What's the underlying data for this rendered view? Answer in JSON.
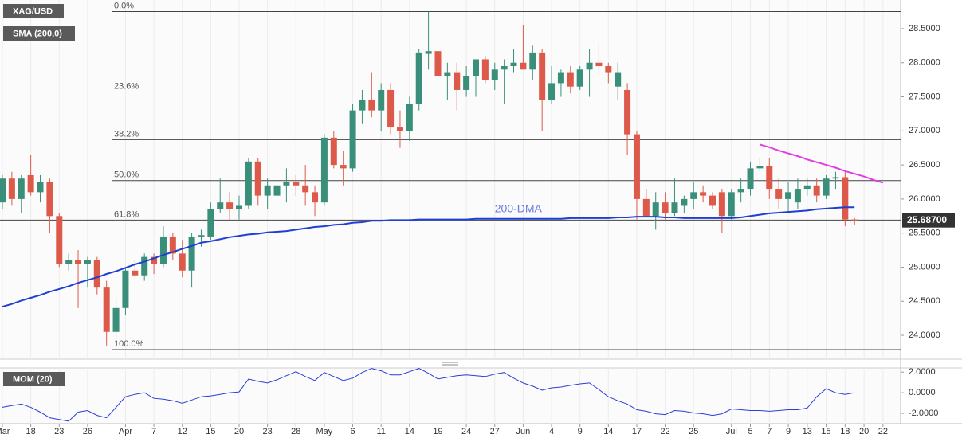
{
  "chart_data": {
    "type": "candlestick",
    "title": "XAG/USD",
    "up_color": "#3a8f7a",
    "down_color": "#dd5a4a",
    "xgrid": true,
    "categories": [
      "Mar",
      null,
      null,
      "18",
      null,
      null,
      "23",
      null,
      null,
      "26",
      null,
      null,
      null,
      "Apr",
      null,
      null,
      "7",
      null,
      null,
      "12",
      null,
      null,
      "15",
      null,
      null,
      "20",
      null,
      null,
      "23",
      null,
      null,
      "28",
      null,
      null,
      "May",
      null,
      null,
      "6",
      null,
      null,
      "11",
      null,
      null,
      "14",
      null,
      null,
      "19",
      null,
      null,
      "24",
      null,
      null,
      "27",
      null,
      null,
      "Jun",
      null,
      null,
      "4",
      null,
      null,
      "9",
      null,
      null,
      "14",
      null,
      null,
      "17",
      null,
      null,
      "22",
      null,
      null,
      "25",
      null,
      null,
      null,
      "Jul",
      null,
      "5",
      null,
      "7",
      null,
      "9",
      null,
      "13",
      null,
      "15",
      null,
      "18",
      null,
      "20",
      null,
      "22"
    ],
    "open": [
      25.95,
      26.3,
      26.0,
      26.35,
      26.1,
      26.25,
      25.75,
      25.05,
      25.1,
      25.05,
      25.1,
      24.7,
      24.05,
      24.4,
      24.95,
      24.88,
      25.15,
      25.05,
      25.45,
      25.2,
      24.95,
      25.45,
      25.45,
      25.85,
      25.95,
      25.85,
      25.9,
      26.55,
      26.05,
      26.05,
      26.2,
      26.25,
      26.2,
      26.1,
      25.95,
      26.9,
      26.5,
      26.45,
      27.3,
      27.45,
      27.3,
      27.6,
      27.05,
      27.0,
      27.4,
      28.13,
      28.17,
      27.8,
      27.85,
      27.6,
      27.8,
      28.05,
      27.75,
      27.9,
      27.95,
      28.0,
      27.9,
      28.15,
      27.45,
      27.7,
      27.85,
      27.65,
      27.9,
      28.0,
      27.95,
      27.65,
      27.6,
      26.95,
      26.0,
      25.75,
      25.95,
      25.8,
      25.9,
      26.0,
      26.1,
      26.05,
      26.1,
      25.75,
      26.1,
      26.15,
      26.45,
      26.48,
      26.15,
      26.0,
      25.95,
      26.15,
      26.2,
      26.05,
      26.3,
      26.32,
      25.7,
      null,
      null,
      null
    ],
    "high": [
      26.35,
      26.4,
      26.35,
      26.65,
      26.35,
      26.3,
      25.8,
      25.2,
      25.25,
      25.15,
      25.15,
      24.8,
      24.55,
      25.0,
      25.1,
      25.2,
      25.2,
      25.6,
      25.5,
      25.4,
      25.5,
      25.55,
      25.95,
      26.3,
      26.1,
      26.05,
      26.6,
      26.6,
      26.3,
      26.3,
      26.45,
      26.35,
      26.5,
      26.2,
      26.95,
      27.0,
      26.7,
      27.4,
      27.6,
      27.85,
      27.7,
      27.7,
      27.3,
      27.5,
      28.2,
      28.75,
      28.2,
      28.0,
      28.0,
      27.95,
      28.05,
      28.1,
      28.0,
      28.05,
      28.2,
      28.55,
      28.25,
      28.2,
      27.95,
      27.9,
      27.95,
      27.95,
      28.2,
      28.3,
      28.0,
      28.0,
      27.7,
      27.0,
      26.15,
      26.1,
      26.1,
      26.3,
      26.05,
      26.25,
      26.2,
      26.1,
      26.15,
      26.15,
      26.3,
      26.55,
      26.6,
      26.6,
      26.3,
      26.25,
      26.3,
      26.3,
      26.3,
      26.35,
      26.4,
      26.4,
      25.72,
      null,
      null,
      null
    ],
    "low": [
      25.85,
      25.9,
      25.8,
      26.05,
      25.95,
      25.5,
      25.0,
      24.95,
      24.4,
      24.7,
      24.6,
      23.85,
      23.95,
      24.3,
      24.85,
      24.8,
      24.9,
      25.0,
      25.1,
      24.85,
      24.7,
      25.3,
      25.4,
      25.8,
      25.7,
      25.7,
      25.85,
      25.9,
      25.85,
      26.0,
      25.95,
      26.05,
      25.9,
      25.75,
      25.9,
      26.45,
      26.2,
      26.4,
      27.1,
      27.2,
      27.0,
      26.95,
      26.75,
      26.85,
      27.3,
      27.9,
      27.4,
      27.45,
      27.3,
      27.5,
      27.5,
      27.7,
      27.6,
      27.4,
      27.85,
      27.9,
      27.75,
      27.0,
      27.4,
      27.5,
      27.55,
      27.6,
      27.5,
      27.8,
      27.7,
      27.45,
      26.65,
      25.7,
      25.75,
      25.55,
      25.7,
      25.75,
      25.8,
      25.85,
      25.95,
      25.85,
      25.5,
      25.7,
      25.95,
      26.05,
      26.4,
      26.0,
      25.85,
      25.8,
      25.85,
      26.05,
      25.95,
      26.0,
      26.15,
      25.6,
      25.62,
      null,
      null,
      null
    ],
    "close": [
      26.3,
      26.0,
      26.3,
      26.1,
      26.25,
      25.75,
      25.05,
      25.1,
      25.05,
      25.1,
      24.7,
      24.05,
      24.4,
      24.95,
      24.88,
      25.15,
      25.05,
      25.45,
      25.2,
      24.95,
      25.45,
      25.47,
      25.85,
      25.95,
      25.85,
      25.9,
      26.55,
      26.05,
      26.2,
      26.2,
      26.25,
      26.2,
      26.1,
      25.95,
      26.9,
      26.5,
      26.45,
      27.3,
      27.45,
      27.3,
      27.6,
      27.05,
      27.0,
      27.4,
      28.15,
      28.17,
      27.8,
      27.85,
      27.6,
      27.8,
      28.05,
      27.75,
      27.9,
      27.95,
      28.0,
      27.9,
      28.15,
      27.45,
      27.7,
      27.85,
      27.65,
      27.9,
      28.0,
      27.95,
      27.85,
      27.85,
      26.95,
      26.0,
      25.75,
      25.95,
      25.8,
      25.95,
      26.0,
      26.1,
      26.05,
      25.9,
      25.75,
      26.1,
      26.15,
      26.45,
      26.48,
      26.15,
      26.0,
      26.1,
      26.15,
      26.2,
      26.05,
      26.3,
      26.32,
      25.7,
      25.687,
      null,
      null,
      null
    ],
    "ylim": [
      23.65,
      28.92
    ],
    "yticks": [
      {
        "value": 24.0,
        "label": "24.0000"
      },
      {
        "value": 24.5,
        "label": "24.5000"
      },
      {
        "value": 25.0,
        "label": "25.0000"
      },
      {
        "value": 25.5,
        "label": "25.5000"
      },
      {
        "value": 26.0,
        "label": "26.0000"
      },
      {
        "value": 26.5,
        "label": "26.5000"
      },
      {
        "value": 27.0,
        "label": "27.0000"
      },
      {
        "value": 27.5,
        "label": "27.5000"
      },
      {
        "value": 28.0,
        "label": "28.0000"
      },
      {
        "value": 28.5,
        "label": "28.5000"
      }
    ],
    "last": {
      "value": 25.687,
      "label": "25.68700"
    },
    "fib_levels": [
      {
        "value": 28.75,
        "label": "0.0%"
      },
      {
        "value": 27.57,
        "label": "23.6%"
      },
      {
        "value": 26.87,
        "label": "38.2%"
      },
      {
        "value": 26.27,
        "label": "50.0%"
      },
      {
        "value": 25.69,
        "label": "61.8%"
      },
      {
        "value": 23.79,
        "label": "100.0%"
      }
    ],
    "sma": {
      "name": "SMA (200,0)",
      "label": "200-DMA",
      "color": "#1f3fd4",
      "label_color": "#6b7be0",
      "values": [
        24.42,
        24.46,
        24.51,
        24.55,
        24.59,
        24.64,
        24.68,
        24.72,
        24.77,
        24.81,
        24.85,
        24.9,
        24.94,
        24.99,
        25.04,
        25.08,
        25.13,
        25.18,
        25.22,
        25.27,
        25.31,
        25.36,
        25.38,
        25.41,
        25.44,
        25.46,
        25.48,
        25.49,
        25.51,
        25.52,
        25.53,
        25.55,
        25.57,
        25.59,
        25.6,
        25.62,
        25.63,
        25.65,
        25.66,
        25.68,
        25.68,
        25.69,
        25.69,
        25.69,
        25.7,
        25.7,
        25.7,
        25.7,
        25.7,
        25.7,
        25.71,
        25.71,
        25.71,
        25.71,
        25.71,
        25.71,
        25.71,
        25.71,
        25.71,
        25.71,
        25.72,
        25.72,
        25.72,
        25.72,
        25.72,
        25.73,
        25.73,
        25.74,
        25.74,
        25.74,
        25.73,
        25.73,
        25.72,
        25.72,
        25.72,
        25.72,
        25.72,
        25.72,
        25.73,
        25.75,
        25.77,
        25.79,
        25.8,
        25.81,
        25.82,
        25.83,
        25.85,
        25.86,
        25.87,
        25.88,
        25.88,
        null,
        null,
        null
      ]
    },
    "trendline": {
      "color": "#e43de4",
      "values": [
        null,
        null,
        null,
        null,
        null,
        null,
        null,
        null,
        null,
        null,
        null,
        null,
        null,
        null,
        null,
        null,
        null,
        null,
        null,
        null,
        null,
        null,
        null,
        null,
        null,
        null,
        null,
        null,
        null,
        null,
        null,
        null,
        null,
        null,
        null,
        null,
        null,
        null,
        null,
        null,
        null,
        null,
        null,
        null,
        null,
        null,
        null,
        null,
        null,
        null,
        null,
        null,
        null,
        null,
        null,
        null,
        null,
        null,
        null,
        null,
        null,
        null,
        null,
        null,
        null,
        null,
        null,
        null,
        null,
        null,
        null,
        null,
        null,
        null,
        null,
        null,
        null,
        null,
        null,
        null,
        26.8,
        26.76,
        26.71,
        26.67,
        26.63,
        26.58,
        26.54,
        26.5,
        26.46,
        26.41,
        26.37,
        26.33,
        26.28,
        26.24
      ]
    },
    "mom": {
      "name": "MOM (20)",
      "color": "#2a3ed6",
      "ylim": [
        -3.0,
        2.4
      ],
      "yticks": [
        {
          "value": 2,
          "label": "2.0000"
        },
        {
          "value": 0,
          "label": "0.0000"
        },
        {
          "value": -2,
          "label": "-2.0000"
        }
      ],
      "values": [
        -1.41,
        -1.25,
        -1.1,
        -1.41,
        -1.88,
        -2.43,
        -2.59,
        -2.75,
        -1.88,
        -1.73,
        -2.2,
        -2.43,
        -1.41,
        -0.39,
        -0.16,
        0,
        -0.55,
        -0.63,
        -0.78,
        -1.02,
        -0.71,
        -0.39,
        -0.31,
        -0.16,
        0,
        0.08,
        1.33,
        1.1,
        0.94,
        1.25,
        1.65,
        2.04,
        1.57,
        1.18,
        1.96,
        1.57,
        1.18,
        1.41,
        1.96,
        2.35,
        2.12,
        1.73,
        1.73,
        2.04,
        2.35,
        1.88,
        1.33,
        1.49,
        1.65,
        1.73,
        1.65,
        1.57,
        1.8,
        1.96,
        1.41,
        0.94,
        0.63,
        0.24,
        0.47,
        0.55,
        0.71,
        0.86,
        0.94,
        0.31,
        -0.39,
        -0.78,
        -1.1,
        -1.65,
        -1.8,
        -2.04,
        -2.12,
        -1.73,
        -1.8,
        -1.96,
        -2.04,
        -2.2,
        -2.04,
        -1.57,
        -1.65,
        -1.73,
        -1.73,
        -1.8,
        -1.73,
        -1.65,
        -1.65,
        -1.49,
        -0.39,
        0.39,
        0,
        -0.16,
        0,
        null,
        null,
        null
      ]
    }
  }
}
